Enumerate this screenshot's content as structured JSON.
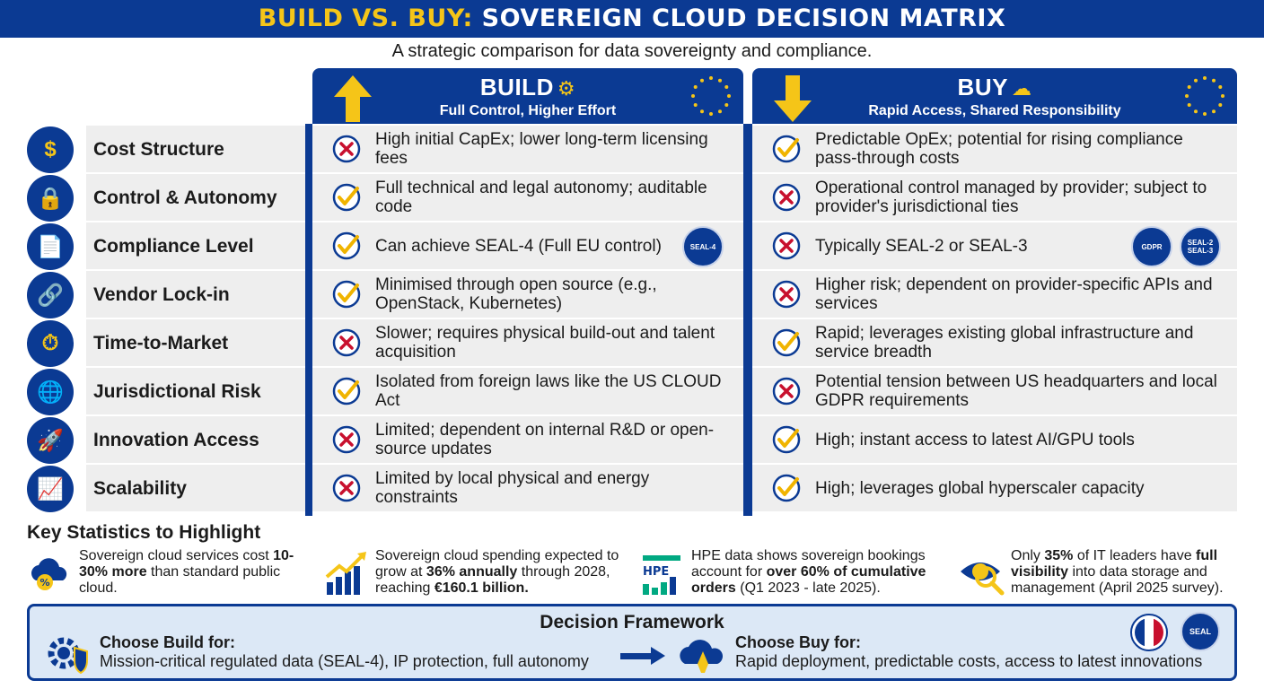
{
  "header": {
    "title_accent": "BUILD VS. BUY:",
    "title_main": " SOVEREIGN CLOUD DECISION MATRIX",
    "subtitle": "A strategic comparison for data sovereignty and compliance."
  },
  "columns": {
    "build": {
      "title": "BUILD",
      "subtitle": "Full Control, Higher Effort"
    },
    "buy": {
      "title": "BUY",
      "subtitle": "Rapid Access, Shared Responsibility"
    }
  },
  "colors": {
    "navy": "#0b3a93",
    "gold": "#f5c518",
    "check": "#f0b400",
    "cross": "#c8102e",
    "row_bg": "#eeeeee"
  },
  "rows": [
    {
      "label": "Cost Structure",
      "icon": "money-bag-icon",
      "build": {
        "mark": "cross",
        "text": "High initial CapEx; lower long-term licensing fees"
      },
      "buy": {
        "mark": "check",
        "text": "Predictable OpEx; potential for rising compliance pass-through costs"
      }
    },
    {
      "label": "Control & Autonomy",
      "icon": "lock-icon",
      "build": {
        "mark": "check",
        "text": "Full technical and legal autonomy; auditable code"
      },
      "buy": {
        "mark": "cross",
        "text": "Operational control managed by provider; subject to provider's jurisdictional ties"
      }
    },
    {
      "label": "Compliance Level",
      "icon": "document-gavel-icon",
      "build": {
        "mark": "check",
        "text": "Can achieve SEAL-4 (Full EU control)"
      },
      "buy": {
        "mark": "cross",
        "text": "Typically SEAL-2 or SEAL-3"
      }
    },
    {
      "label": "Vendor Lock-in",
      "icon": "chain-link-icon",
      "build": {
        "mark": "check",
        "text": "Minimised through open source (e.g., OpenStack, Kubernetes)"
      },
      "buy": {
        "mark": "cross",
        "text": "Higher risk; dependent on provider-specific APIs and services"
      }
    },
    {
      "label": "Time-to-Market",
      "icon": "stopwatch-icon",
      "build": {
        "mark": "cross",
        "text": "Slower; requires physical build-out and talent acquisition"
      },
      "buy": {
        "mark": "check",
        "text": "Rapid; leverages existing global infrastructure and service breadth"
      }
    },
    {
      "label": "Jurisdictional Risk",
      "icon": "globe-gavel-icon",
      "build": {
        "mark": "check",
        "text": "Isolated from foreign laws like the US CLOUD Act"
      },
      "buy": {
        "mark": "cross",
        "text": "Potential tension between US headquarters and local GDPR requirements"
      }
    },
    {
      "label": "Innovation Access",
      "icon": "rocket-icon",
      "build": {
        "mark": "cross",
        "text": "Limited; dependent on internal R&D or open-source updates"
      },
      "buy": {
        "mark": "check",
        "text": "High; instant access to latest AI/GPU tools"
      }
    },
    {
      "label": "Scalability",
      "icon": "growth-chart-icon",
      "build": {
        "mark": "cross",
        "text": "Limited by local physical and energy constraints"
      },
      "buy": {
        "mark": "check",
        "text": "High; leverages global hyperscaler capacity"
      }
    }
  ],
  "badges": {
    "seal4": "SEAL-4",
    "gdpr": "GDPR",
    "seal2": "SEAL-2",
    "seal3": "SEAL-3"
  },
  "stats": {
    "title": "Key Statistics to Highlight",
    "items": [
      {
        "pre": "Sovereign cloud services cost ",
        "bold": "10-30% more",
        "post": " than standard public cloud."
      },
      {
        "pre": "Sovereign cloud spending expected to grow at ",
        "bold": "36% annually",
        "mid": " through 2028, reaching ",
        "bold2": "€160.1 billion."
      },
      {
        "icon_text": "HPE",
        "pre": "HPE data shows sovereign bookings account for ",
        "bold": "over 60% of cumulative orders",
        "post": " (Q1 2023 - late 2025)."
      },
      {
        "pre": "Only ",
        "bold": "35%",
        "mid": " of IT leaders have ",
        "bold2": "full visibility",
        "post": " into data storage and management (April 2025 survey)."
      }
    ]
  },
  "framework": {
    "title": "Decision Framework",
    "build_label": "Choose Build for:",
    "build_text": "Mission-critical regulated data (SEAL-4), IP protection, full autonomy",
    "buy_label": "Choose Buy for:",
    "buy_text": "Rapid deployment, predictable costs, access to latest innovations",
    "seal_badge": "SEAL"
  }
}
